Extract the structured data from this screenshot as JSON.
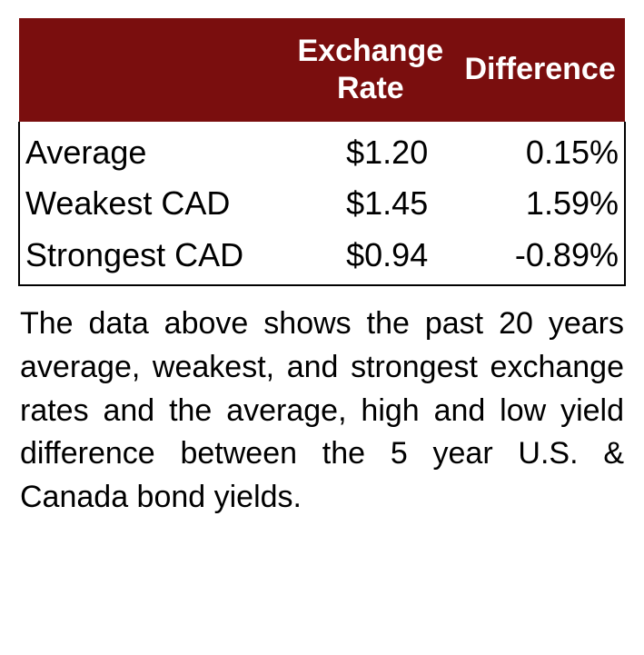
{
  "table": {
    "type": "table",
    "header_bg": "#7a0e0e",
    "header_text_color": "#ffffff",
    "header_fontsize": 34,
    "header_fontweight": 700,
    "body_fontsize": 36,
    "body_text_color": "#000000",
    "border_color": "#000000",
    "border_width": 2,
    "background_color": "#ffffff",
    "columns": [
      {
        "label": "",
        "align": "left",
        "width_pct": 44
      },
      {
        "label": "Exchange Rate",
        "align": "right",
        "width_pct": 28
      },
      {
        "label": "Difference",
        "align": "right",
        "width_pct": 28
      }
    ],
    "rows": [
      {
        "label": "Average",
        "exchange_rate": "$1.20",
        "difference": "0.15%"
      },
      {
        "label": "Weakest CAD",
        "exchange_rate": "$1.45",
        "difference": "1.59%"
      },
      {
        "label": "Strongest CAD",
        "exchange_rate": "$0.94",
        "difference": "-0.89%"
      }
    ]
  },
  "caption": {
    "text": "The data above shows the past 20 years average, weakest, and strongest exchange rates and the average, high and low yield difference between the 5 year U.S. & Canada bond yields.",
    "fontsize": 34,
    "text_color": "#000000",
    "align": "justify"
  }
}
